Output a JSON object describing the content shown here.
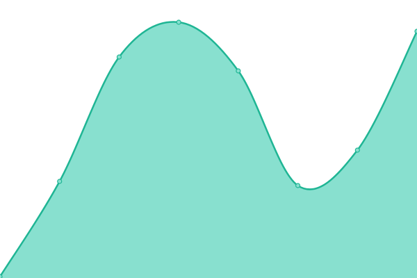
{
  "chart_data": {
    "type": "area",
    "values": [
      2,
      139,
      318,
      368,
      298,
      133,
      184,
      355
    ],
    "ylim": [
      0,
      400
    ],
    "color": "#1fb594",
    "fill": "#88e0cf"
  }
}
